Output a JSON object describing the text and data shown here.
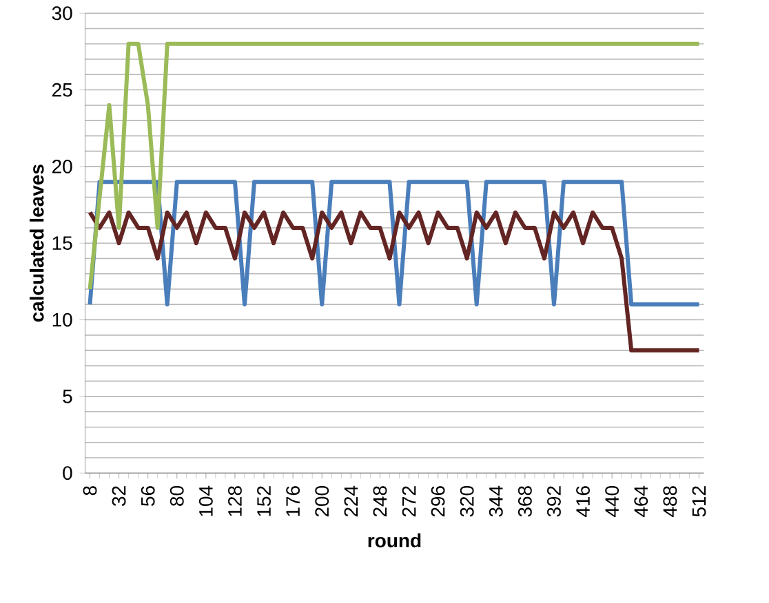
{
  "chart_data": {
    "type": "line",
    "xlabel": "round",
    "ylabel": "calculated leaves",
    "categories": [
      "8",
      null,
      null,
      "32",
      null,
      null,
      "56",
      null,
      null,
      "80",
      null,
      null,
      "104",
      null,
      null,
      "128",
      null,
      null,
      "152",
      null,
      null,
      "176",
      null,
      null,
      "200",
      null,
      null,
      "224",
      null,
      null,
      "248",
      null,
      null,
      "272",
      null,
      null,
      "296",
      null,
      null,
      "320",
      null,
      null,
      "344",
      null,
      null,
      "368",
      null,
      null,
      "392",
      null,
      null,
      "416",
      null,
      null,
      "440",
      null,
      null,
      "464",
      null,
      null,
      "488",
      null,
      null,
      "512"
    ],
    "series": [
      {
        "color": "#4a7ebb",
        "values": [
          11,
          19,
          19,
          19,
          19,
          19,
          19,
          19,
          11,
          19,
          19,
          19,
          19,
          19,
          19,
          19,
          11,
          19,
          19,
          19,
          19,
          19,
          19,
          19,
          11,
          19,
          19,
          19,
          19,
          19,
          19,
          19,
          11,
          19,
          19,
          19,
          19,
          19,
          19,
          19,
          11,
          19,
          19,
          19,
          19,
          19,
          19,
          19,
          11,
          19,
          19,
          19,
          19,
          19,
          19,
          19,
          11,
          11,
          11,
          11,
          11,
          11,
          11,
          11
        ]
      },
      {
        "color": "#632523",
        "values": [
          17,
          16,
          17,
          15,
          17,
          16,
          16,
          14,
          17,
          16,
          17,
          15,
          17,
          16,
          16,
          14,
          17,
          16,
          17,
          15,
          17,
          16,
          16,
          14,
          17,
          16,
          17,
          15,
          17,
          16,
          16,
          14,
          17,
          16,
          17,
          15,
          17,
          16,
          16,
          14,
          17,
          16,
          17,
          15,
          17,
          16,
          16,
          14,
          17,
          16,
          17,
          15,
          17,
          16,
          16,
          14,
          8,
          8,
          8,
          8,
          8,
          8,
          8,
          8
        ]
      },
      {
        "color": "#9bbb59",
        "values": [
          12,
          18,
          24,
          16,
          28,
          28,
          24,
          16,
          28,
          28,
          28,
          28,
          28,
          28,
          28,
          28,
          28,
          28,
          28,
          28,
          28,
          28,
          28,
          28,
          28,
          28,
          28,
          28,
          28,
          28,
          28,
          28,
          28,
          28,
          28,
          28,
          28,
          28,
          28,
          28,
          28,
          28,
          28,
          28,
          28,
          28,
          28,
          28,
          28,
          28,
          28,
          28,
          28,
          28,
          28,
          28,
          28,
          28,
          28,
          28,
          28,
          28,
          28,
          28
        ]
      }
    ],
    "ylim": [
      0,
      30
    ],
    "yticks": [
      0,
      {
        "value": 1,
        "label": null
      },
      {
        "value": 2,
        "label": null
      },
      {
        "value": 3,
        "label": null
      },
      {
        "value": 4,
        "label": null
      },
      5,
      {
        "value": 6,
        "label": null
      },
      {
        "value": 7,
        "label": null
      },
      {
        "value": 8,
        "label": null
      },
      {
        "value": 9,
        "label": null
      },
      10,
      {
        "value": 11,
        "label": null
      },
      {
        "value": 12,
        "label": null
      },
      {
        "value": 13,
        "label": null
      },
      {
        "value": 14,
        "label": null
      },
      15,
      {
        "value": 16,
        "label": null
      },
      {
        "value": 17,
        "label": null
      },
      {
        "value": 18,
        "label": null
      },
      {
        "value": 19,
        "label": null
      },
      20,
      {
        "value": 21,
        "label": null
      },
      {
        "value": 22,
        "label": null
      },
      {
        "value": 23,
        "label": null
      },
      {
        "value": 24,
        "label": null
      },
      25,
      {
        "value": 26,
        "label": null
      },
      {
        "value": 27,
        "label": null
      },
      {
        "value": 28,
        "label": null
      },
      {
        "value": 29,
        "label": null
      },
      30
    ],
    "grid": "y",
    "line_style": "solid"
  }
}
